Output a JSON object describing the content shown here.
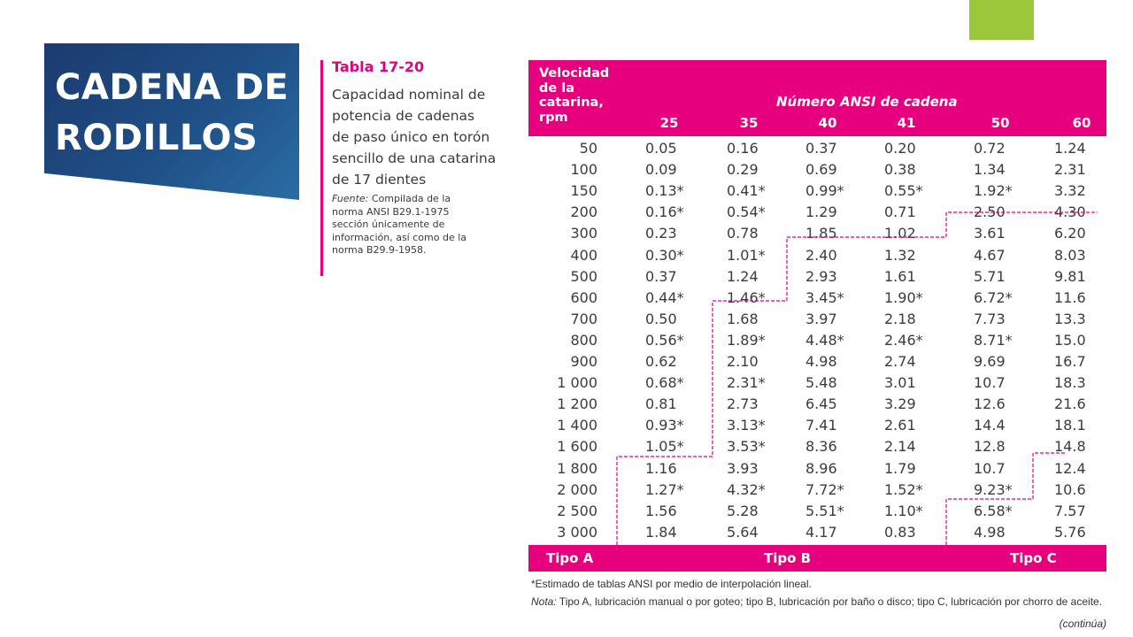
{
  "slide": {
    "title_line1": "CADENA DE",
    "title_line2": "RODILLOS",
    "accent_colors": {
      "magenta": "#e6007e",
      "green": "#9bc83a",
      "navy": "#1f4f86"
    }
  },
  "side_panel": {
    "table_number": "Tabla 17-20",
    "description": [
      "Capacidad nominal de",
      "potencia de cadenas",
      "de paso único en torón",
      "sencillo de una catarina",
      "de 17 dientes"
    ],
    "source_label": "Fuente:",
    "source_lines": [
      " Compilada de la",
      "norma ANSI B29.1-1975",
      "sección únicamente de",
      "información, así como de la",
      "norma B29.9-1958."
    ]
  },
  "table": {
    "speed_header": [
      "Velocidad",
      "de la",
      "catarina,",
      "rpm"
    ],
    "ansi_header": "Número ANSI de cadena",
    "columns": [
      "25",
      "35",
      "40",
      "41",
      "50",
      "60"
    ],
    "rows": [
      [
        "50",
        "0.05",
        "0.16",
        "0.37",
        "0.20",
        "0.72",
        "1.24"
      ],
      [
        "100",
        "0.09",
        "0.29",
        "0.69",
        "0.38",
        "1.34",
        "2.31"
      ],
      [
        "150",
        "0.13*",
        "0.41*",
        "0.99*",
        "0.55*",
        "1.92*",
        "3.32"
      ],
      [
        "200",
        "0.16*",
        "0.54*",
        "1.29",
        "0.71",
        "2.50",
        "4.30"
      ],
      [
        "300",
        "0.23",
        "0.78",
        "1.85",
        "1.02",
        "3.61",
        "6.20"
      ],
      [
        "400",
        "0.30*",
        "1.01*",
        "2.40",
        "1.32",
        "4.67",
        "8.03"
      ],
      [
        "500",
        "0.37",
        "1.24",
        "2.93",
        "1.61",
        "5.71",
        "9.81"
      ],
      [
        "600",
        "0.44*",
        "1.46*",
        "3.45*",
        "1.90*",
        "6.72*",
        "11.6"
      ],
      [
        "700",
        "0.50",
        "1.68",
        "3.97",
        "2.18",
        "7.73",
        "13.3"
      ],
      [
        "800",
        "0.56*",
        "1.89*",
        "4.48*",
        "2.46*",
        "8.71*",
        "15.0"
      ],
      [
        "900",
        "0.62",
        "2.10",
        "4.98",
        "2.74",
        "9.69",
        "16.7"
      ],
      [
        "1 000",
        "0.68*",
        "2.31*",
        "5.48",
        "3.01",
        "10.7",
        "18.3"
      ],
      [
        "1 200",
        "0.81",
        "2.73",
        "6.45",
        "3.29",
        "12.6",
        "21.6"
      ],
      [
        "1 400",
        "0.93*",
        "3.13*",
        "7.41",
        "2.61",
        "14.4",
        "18.1"
      ],
      [
        "1 600",
        "1.05*",
        "3.53*",
        "8.36",
        "2.14",
        "12.8",
        "14.8"
      ],
      [
        "1 800",
        "1.16",
        "3.93",
        "8.96",
        "1.79",
        "10.7",
        "12.4"
      ],
      [
        "2 000",
        "1.27*",
        "4.32*",
        "7.72*",
        "1.52*",
        "9.23*",
        "10.6"
      ],
      [
        "2 500",
        "1.56",
        "5.28",
        "5.51*",
        "1.10*",
        "6.58*",
        "7.57"
      ],
      [
        "3 000",
        "1.84",
        "5.64",
        "4.17",
        "0.83",
        "4.98",
        "5.76"
      ]
    ],
    "footer": {
      "tipo_a": "Tipo A",
      "tipo_b": "Tipo B",
      "tipo_c": "Tipo C"
    }
  },
  "notes": {
    "estimate": "*Estimado de tablas ANSI por medio de interpolación lineal.",
    "nota_label": "Nota:",
    "nota_text": " Tipo A, lubricación manual o por goteo; tipo B, lubricación por baño o disco; tipo C, lubricación por chorro de aceite.",
    "continua": "(continúa)"
  }
}
